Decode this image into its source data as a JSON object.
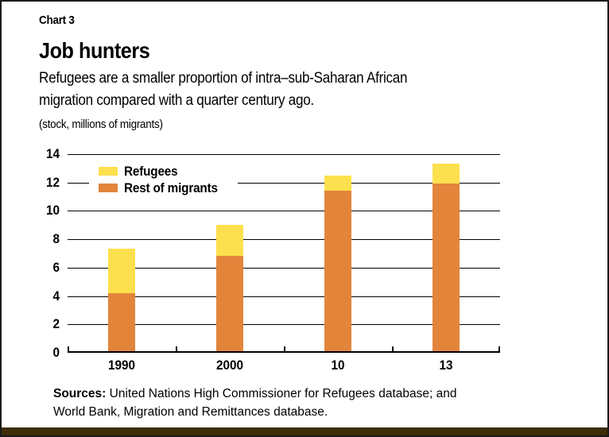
{
  "header": {
    "chart_number": "Chart 3",
    "title": "Job hunters",
    "subtitle_line1": "Refugees are a smaller proportion of intra–sub-Saharan African",
    "subtitle_line2": "migration compared with a quarter century ago.",
    "unit_note": "(stock, millions of migrants)"
  },
  "colors": {
    "refugees": "#FDE04D",
    "rest": "#E2853B",
    "grid": "#000000",
    "footer_bar": "#3E2B07",
    "border": "#1A1A1A"
  },
  "chart_data": {
    "type": "bar",
    "stacked": true,
    "categories": [
      "1990",
      "2000",
      "10",
      "13"
    ],
    "series": [
      {
        "name": "Rest of migrants",
        "color_key": "rest",
        "values": [
          4.1,
          6.7,
          11.3,
          11.8
        ]
      },
      {
        "name": "Refugees",
        "color_key": "refugees",
        "values": [
          3.1,
          2.2,
          1.1,
          1.4
        ]
      }
    ],
    "totals": [
      7.2,
      8.9,
      12.4,
      13.2
    ],
    "legend": [
      {
        "label": "Refugees",
        "color_key": "refugees"
      },
      {
        "label": "Rest of migrants",
        "color_key": "rest"
      }
    ],
    "legend_position": "top-left-inside",
    "grid": true,
    "ylim": [
      0,
      14
    ],
    "ytick_step": 2,
    "xlabel": "",
    "ylabel": "(stock, millions of migrants)"
  },
  "sources": {
    "label": "Sources:",
    "line1": " United Nations High Commissioner for Refugees database; and",
    "line2": "World Bank, Migration and Remittances database."
  }
}
